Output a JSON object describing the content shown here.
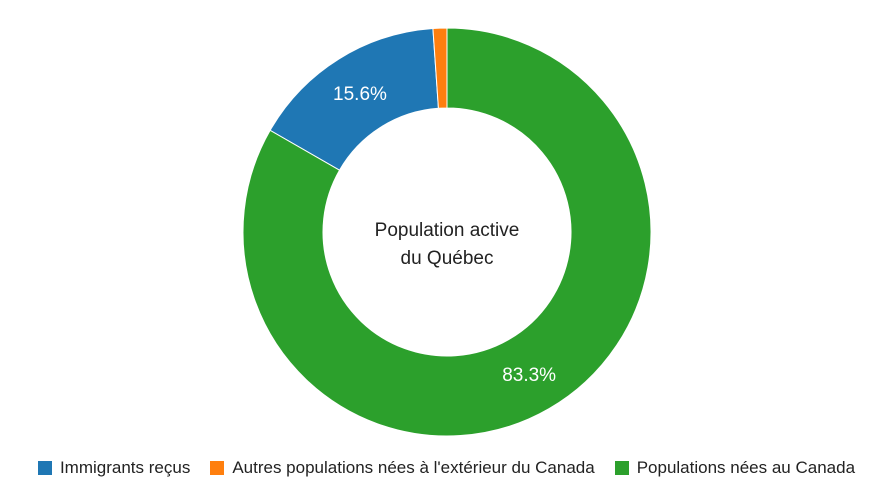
{
  "chart_data": {
    "type": "pie",
    "donut": true,
    "center_label": [
      "Population active",
      "du Québec"
    ],
    "series": [
      {
        "name": "Immigrants reçus",
        "value": 15.6,
        "label": "15.6%",
        "color": "#1f77b4"
      },
      {
        "name": "Autres populations nées à l'extérieur du Canada",
        "value": 1.1,
        "label": "",
        "color": "#ff7f0e"
      },
      {
        "name": "Populations nées au Canada",
        "value": 83.3,
        "label": "83.3%",
        "color": "#2ca02c"
      }
    ],
    "legend_position": "bottom"
  }
}
